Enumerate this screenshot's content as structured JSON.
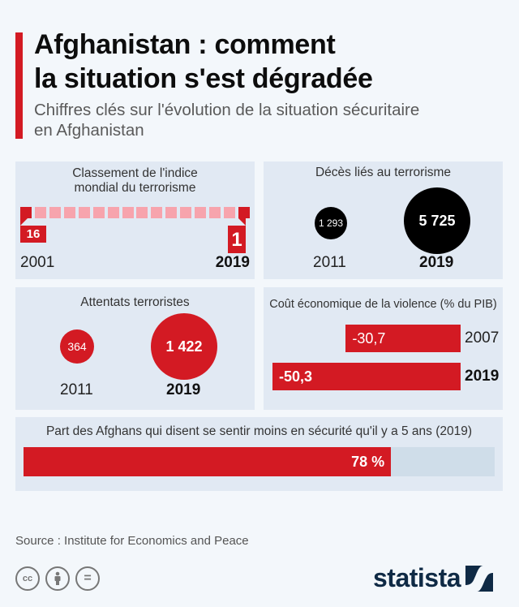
{
  "header": {
    "title_line1": "Afghanistan : comment",
    "title_line2": "la situation s'est dégradée",
    "subtitle_line1": "Chiffres clés sur l'évolution de la situation sécuritaire",
    "subtitle_line2": "en Afghanistan",
    "accent_color": "#d31a23"
  },
  "chart_data": [
    {
      "type": "table",
      "title_line1": "Classement de l'indice",
      "title_line2": "mondial du terrorisme",
      "total_positions": 16,
      "points": [
        {
          "year": "2001",
          "rank": "16"
        },
        {
          "year": "2019",
          "rank": "1"
        }
      ]
    },
    {
      "type": "scatter",
      "title": "Décès liés au terrorisme",
      "points": [
        {
          "year": "2011",
          "value": 1293,
          "label": "1 293"
        },
        {
          "year": "2019",
          "value": 5725,
          "label": "5 725"
        }
      ],
      "color": "#000000"
    },
    {
      "type": "scatter",
      "title": "Attentats terroristes",
      "points": [
        {
          "year": "2011",
          "value": 364,
          "label": "364"
        },
        {
          "year": "2019",
          "value": 1422,
          "label": "1 422"
        }
      ],
      "color": "#d31a23"
    },
    {
      "type": "bar",
      "title": "Coût économique de la violence (% du PIB)",
      "categories": [
        "2007",
        "2019"
      ],
      "values": [
        -30.7,
        -50.3
      ],
      "labels": [
        "-30,7",
        "-50,3"
      ],
      "color": "#d31a23"
    },
    {
      "type": "bar",
      "title": "Part des Afghans qui disent se sentir moins en sécurité qu'il y a 5 ans (2019)",
      "values": [
        78
      ],
      "label": "78 %",
      "max": 100,
      "color": "#d31a23"
    }
  ],
  "footer": {
    "source": "Source : Institute for Economics and Peace",
    "license_icons": [
      "cc-icon",
      "attribution-icon",
      "no-derivatives-icon"
    ],
    "cc_label": "cc",
    "nd_label": "=",
    "brand": "statista"
  }
}
